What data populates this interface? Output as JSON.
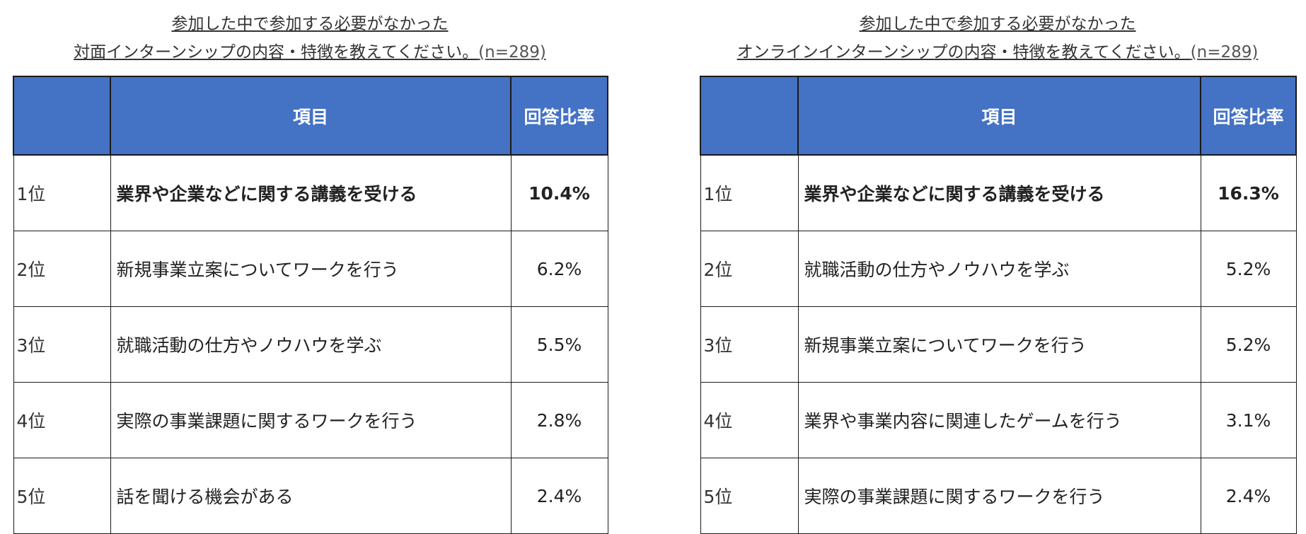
{
  "tables": [
    {
      "title_line1": "参加した中で参加する必要がなかった",
      "title_line2": "対面インターンシップの内容・特徴を教えてください。",
      "sample": "(n=289)",
      "headers": {
        "rank": "",
        "item": "項目",
        "rate": "回答比率"
      },
      "rows": [
        {
          "rank": "1位",
          "item": "業界や企業などに関する講義を受ける",
          "rate": "10.4%"
        },
        {
          "rank": "2位",
          "item": "新規事業立案についてワークを行う",
          "rate": "6.2%"
        },
        {
          "rank": "3位",
          "item": "就職活動の仕方やノウハウを学ぶ",
          "rate": "5.5%"
        },
        {
          "rank": "4位",
          "item": "実際の事業課題に関するワークを行う",
          "rate": "2.8%"
        },
        {
          "rank": "5位",
          "item": "話を聞ける機会がある",
          "rate": "2.4%"
        }
      ]
    },
    {
      "title_line1": "参加した中で参加する必要がなかった",
      "title_line2": "オンラインインターンシップの内容・特徴を教えてください。",
      "sample": "(n=289)",
      "headers": {
        "rank": "",
        "item": "項目",
        "rate": "回答比率"
      },
      "rows": [
        {
          "rank": "1位",
          "item": "業界や企業などに関する講義を受ける",
          "rate": "16.3%"
        },
        {
          "rank": "2位",
          "item": "就職活動の仕方やノウハウを学ぶ",
          "rate": "5.2%"
        },
        {
          "rank": "3位",
          "item": "新規事業立案についてワークを行う",
          "rate": "5.2%"
        },
        {
          "rank": "4位",
          "item": "業界や事業内容に関連したゲームを行う",
          "rate": "3.1%"
        },
        {
          "rank": "5位",
          "item": "実際の事業課題に関するワークを行う",
          "rate": "2.4%"
        }
      ]
    }
  ],
  "colors": {
    "header": "#4472c4"
  }
}
